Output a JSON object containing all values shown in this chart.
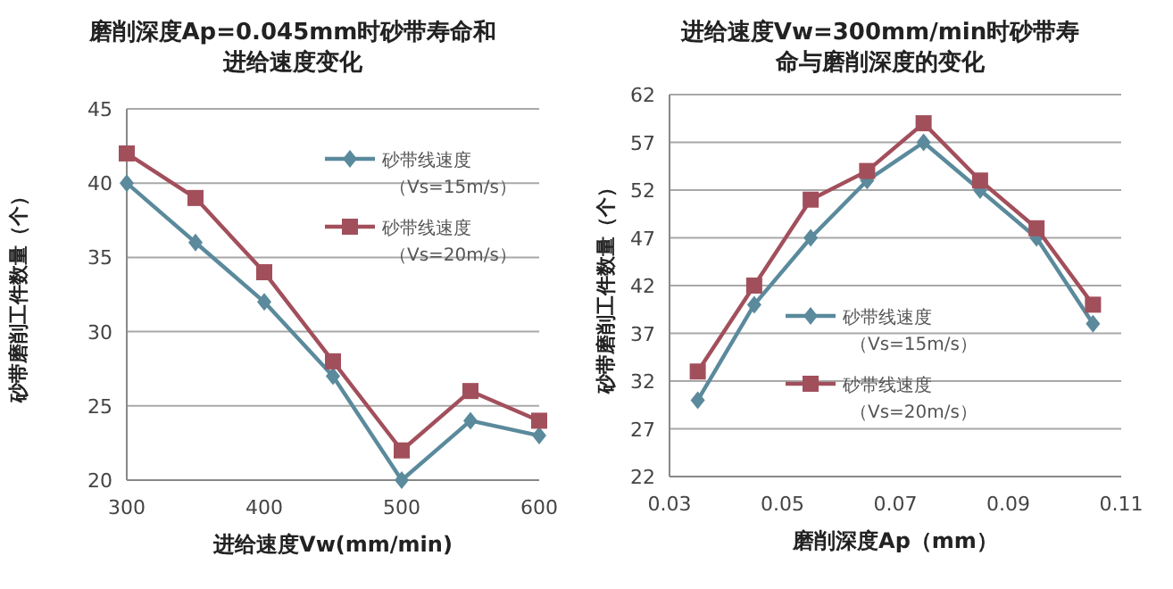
{
  "chart_data": [
    {
      "type": "line",
      "title": "磨削深度Ap=0.045mm时砂带寿命和进给速度变化",
      "xlabel": "进给速度Vw(mm/min)",
      "ylabel": "砂带磨削工件数量（个）",
      "x": [
        300,
        350,
        400,
        450,
        500,
        550,
        600
      ],
      "series": [
        {
          "name": "砂带线速度（Vs=15m/s）",
          "color": "#5a8a9c",
          "marker": "diamond",
          "values": [
            40,
            36,
            32,
            27,
            20,
            24,
            23
          ]
        },
        {
          "name": "砂带线速度（Vs=20m/s）",
          "color": "#a24f5c",
          "marker": "square",
          "values": [
            42,
            39,
            34,
            28,
            22,
            26,
            24
          ]
        }
      ],
      "xlim": [
        300,
        600
      ],
      "xticks": [
        300,
        400,
        500,
        600
      ],
      "ylim": [
        20,
        45
      ],
      "yticks": [
        20,
        25,
        30,
        35,
        40,
        45
      ],
      "grid": "y",
      "legend": "right",
      "line_style": "solid"
    },
    {
      "type": "line",
      "title": "进给速度Vw=300mm/min时砂带寿命与磨削深度的变化",
      "xlabel": "磨削深度Ap（mm）",
      "ylabel": "砂带磨削工件数量（个）",
      "x": [
        0.035,
        0.045,
        0.055,
        0.065,
        0.075,
        0.085,
        0.095,
        0.105
      ],
      "series": [
        {
          "name": "砂带线速度（Vs=15m/s）",
          "color": "#5a8a9c",
          "marker": "diamond",
          "values": [
            30,
            40,
            47,
            53,
            57,
            52,
            47,
            38
          ]
        },
        {
          "name": "砂带线速度（Vs=20m/s）",
          "color": "#a24f5c",
          "marker": "square",
          "values": [
            33,
            42,
            51,
            54,
            59,
            53,
            48,
            40
          ]
        }
      ],
      "xlim": [
        0.03,
        0.11
      ],
      "xticks": [
        0.03,
        0.05,
        0.07,
        0.09,
        0.11
      ],
      "ylim": [
        22,
        62
      ],
      "yticks": [
        22,
        27,
        32,
        37,
        42,
        47,
        52,
        57,
        62
      ],
      "grid": "y",
      "legend": "bottom",
      "line_style": "solid"
    }
  ]
}
